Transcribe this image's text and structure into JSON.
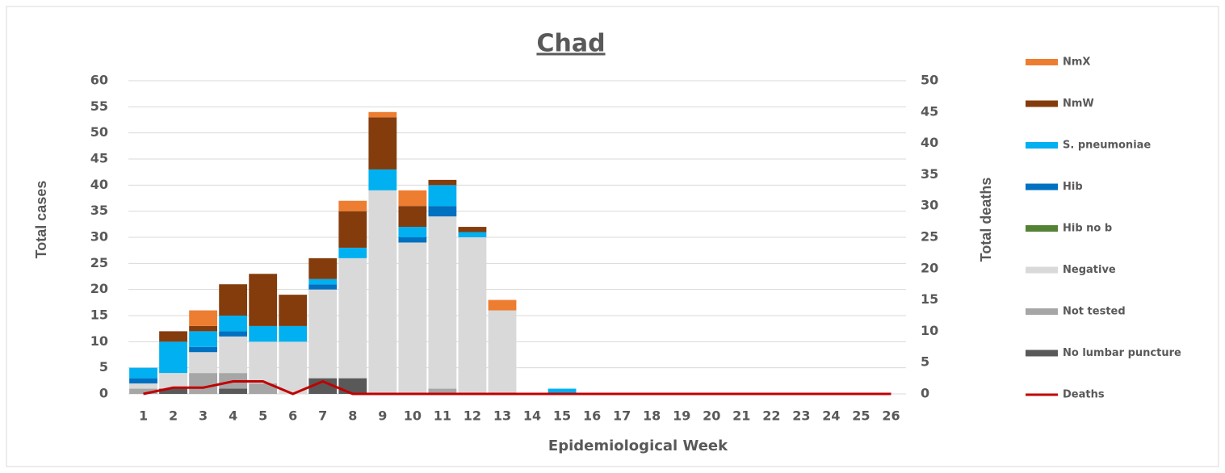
{
  "chart_data": {
    "type": "bar",
    "stacked": true,
    "title": "Chad",
    "xlabel": "Epidemiological Week",
    "ylabel": "Total cases",
    "y2label": "Total deaths",
    "categories": [
      "1",
      "2",
      "3",
      "4",
      "5",
      "6",
      "7",
      "8",
      "9",
      "10",
      "11",
      "12",
      "13",
      "14",
      "15",
      "16",
      "17",
      "18",
      "19",
      "20",
      "21",
      "22",
      "23",
      "24",
      "25",
      "26"
    ],
    "ylim": [
      0,
      60
    ],
    "yticks": [
      0,
      5,
      10,
      15,
      20,
      25,
      30,
      35,
      40,
      45,
      50,
      55,
      60
    ],
    "y2lim": [
      0,
      50
    ],
    "y2ticks": [
      0,
      5,
      10,
      15,
      20,
      25,
      30,
      35,
      40,
      45,
      50
    ],
    "grid": true,
    "legend": "right",
    "series": [
      {
        "name": "No lumbar puncture",
        "color": "#595959",
        "values": [
          0,
          1,
          0,
          1,
          0,
          0,
          3,
          3,
          0,
          0,
          0,
          0,
          0,
          0,
          0,
          0,
          0,
          0,
          0,
          0,
          0,
          0,
          0,
          0,
          0,
          0
        ]
      },
      {
        "name": "Not tested",
        "color": "#a6a6a6",
        "values": [
          1,
          0,
          4,
          3,
          2,
          0,
          0,
          0,
          0,
          0,
          1,
          0,
          0,
          0,
          0,
          0,
          0,
          0,
          0,
          0,
          0,
          0,
          0,
          0,
          0,
          0
        ]
      },
      {
        "name": "Negative",
        "color": "#d9d9d9",
        "values": [
          1,
          3,
          4,
          7,
          8,
          10,
          17,
          23,
          39,
          29,
          33,
          30,
          16,
          0,
          0,
          0,
          0,
          0,
          0,
          0,
          0,
          0,
          0,
          0,
          0,
          0
        ]
      },
      {
        "name": "Hib no b",
        "color": "#548235",
        "values": [
          0,
          0,
          0,
          0,
          0,
          0,
          0,
          0,
          0,
          0,
          0,
          0,
          0,
          0,
          0,
          0,
          0,
          0,
          0,
          0,
          0,
          0,
          0,
          0,
          0,
          0
        ]
      },
      {
        "name": "Hib",
        "color": "#0070c0",
        "values": [
          1,
          0,
          1,
          1,
          0,
          0,
          1,
          0,
          0,
          1,
          2,
          0,
          0,
          0,
          0,
          0,
          0,
          0,
          0,
          0,
          0,
          0,
          0,
          0,
          0,
          0
        ]
      },
      {
        "name": "S. pneumoniae",
        "color": "#00b0f0",
        "values": [
          2,
          6,
          3,
          3,
          3,
          3,
          1,
          2,
          4,
          2,
          4,
          1,
          0,
          0,
          1,
          0,
          0,
          0,
          0,
          0,
          0,
          0,
          0,
          0,
          0,
          0
        ]
      },
      {
        "name": "NmW",
        "color": "#843c0c",
        "values": [
          0,
          2,
          1,
          6,
          10,
          6,
          4,
          7,
          10,
          4,
          1,
          1,
          0,
          0,
          0,
          0,
          0,
          0,
          0,
          0,
          0,
          0,
          0,
          0,
          0,
          0
        ]
      },
      {
        "name": "NmX",
        "color": "#ed7d31",
        "values": [
          0,
          0,
          3,
          0,
          0,
          0,
          0,
          2,
          1,
          3,
          0,
          0,
          2,
          0,
          0,
          0,
          0,
          0,
          0,
          0,
          0,
          0,
          0,
          0,
          0,
          0
        ]
      },
      {
        "name": "Deaths",
        "color": "#c00000",
        "type": "line",
        "axis": "y2",
        "values": [
          0,
          1,
          1,
          2,
          2,
          0,
          2,
          0,
          0,
          0,
          0,
          0,
          0,
          0,
          0,
          0,
          0,
          0,
          0,
          0,
          0,
          0,
          0,
          0,
          0,
          0
        ]
      }
    ]
  }
}
